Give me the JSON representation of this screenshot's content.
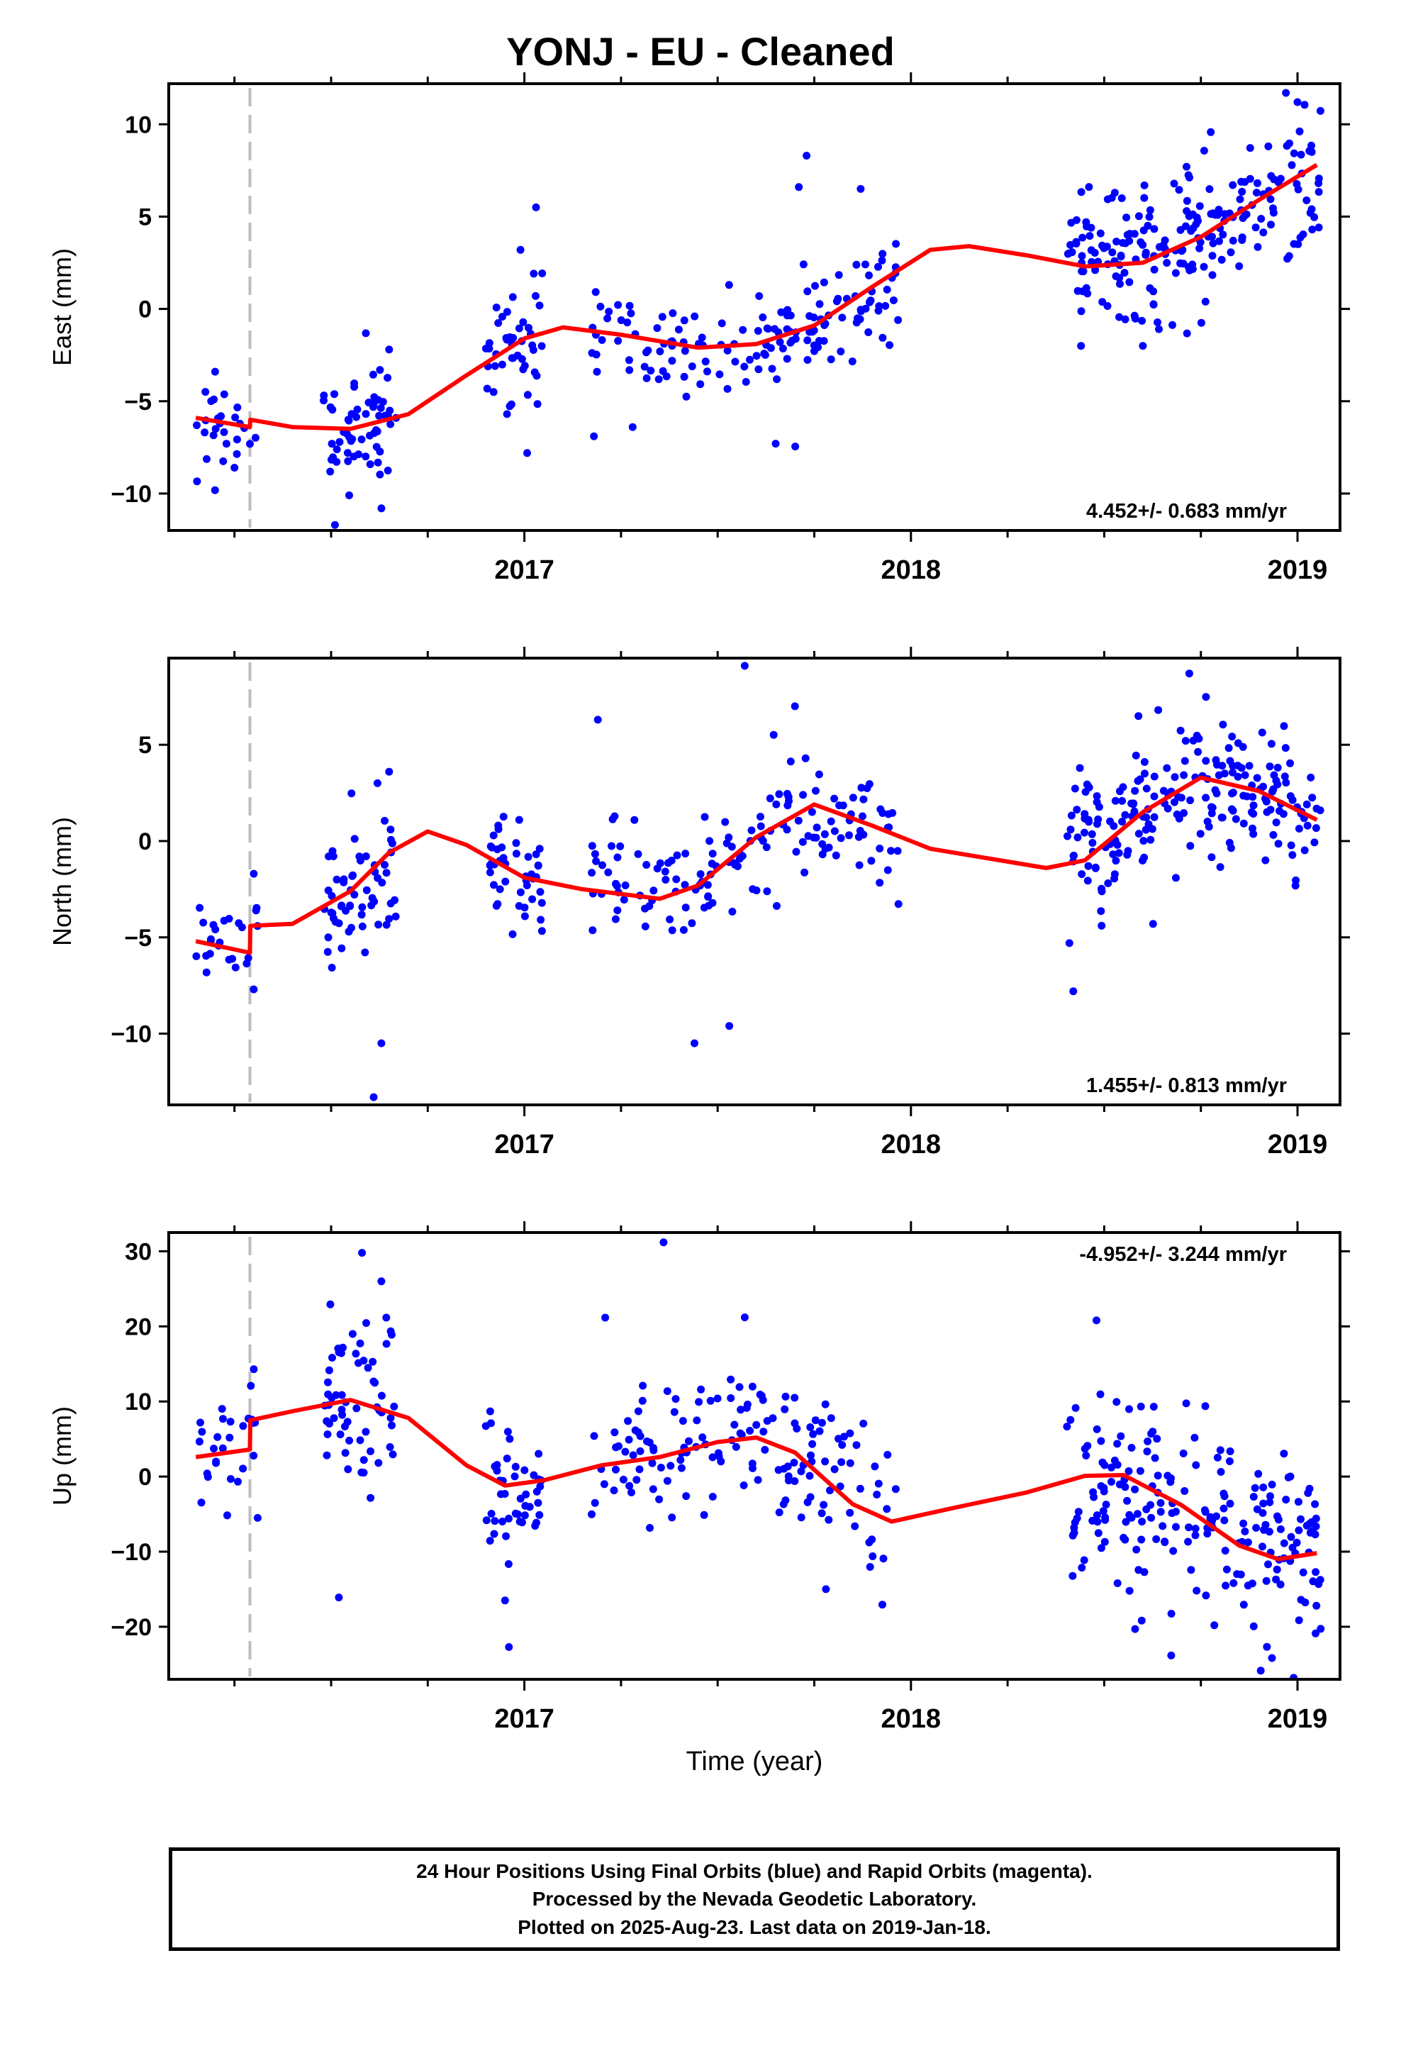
{
  "title": "YONJ  - EU - Cleaned",
  "xlabel": "Time (year)",
  "caption": [
    "24 Hour Positions Using Final Orbits (blue) and Rapid Orbits (magenta).",
    "Processed by the Nevada Geodetic Laboratory.",
    "Plotted on 2025-Aug-23. Last data on 2019-Jan-18."
  ],
  "colors": {
    "points": "#0000ff",
    "fit": "#ff0000",
    "step_line": "#bdbdbd",
    "axes": "#000000"
  },
  "chart_data": [
    {
      "type": "scatter",
      "ylabel": "East (mm)",
      "xlim": [
        2016.08,
        2019.11
      ],
      "ylim": [
        -12,
        12.2
      ],
      "yticks": [
        -10,
        -5,
        0,
        5,
        10
      ],
      "xticks": [
        2017,
        2018,
        2019
      ],
      "rate_label": "4.452+/- 0.683 mm/yr",
      "step_epoch": 2016.29,
      "fit": [
        [
          2016.15,
          -5.9
        ],
        [
          2016.29,
          -6.4
        ],
        [
          2016.291,
          -6.0
        ],
        [
          2016.4,
          -6.4
        ],
        [
          2016.55,
          -6.5
        ],
        [
          2016.7,
          -5.7
        ],
        [
          2016.85,
          -3.6
        ],
        [
          2017.0,
          -1.6
        ],
        [
          2017.1,
          -1.0
        ],
        [
          2017.25,
          -1.4
        ],
        [
          2017.45,
          -2.1
        ],
        [
          2017.6,
          -1.9
        ],
        [
          2017.75,
          -0.9
        ],
        [
          2017.9,
          1.2
        ],
        [
          2018.05,
          3.2
        ],
        [
          2018.15,
          3.4
        ],
        [
          2018.3,
          2.9
        ],
        [
          2018.45,
          2.3
        ],
        [
          2018.6,
          2.5
        ],
        [
          2018.75,
          3.9
        ],
        [
          2018.9,
          5.9
        ],
        [
          2019.05,
          7.8
        ]
      ],
      "segments": [
        {
          "start": 2016.15,
          "end": 2016.31,
          "center": -6.3,
          "spread": 1.2,
          "n": 26,
          "outliers": [
            [
              2016.2,
              -3.4
            ],
            [
              2016.25,
              -8.6
            ]
          ]
        },
        {
          "start": 2016.48,
          "end": 2016.67,
          "center": -6.6,
          "spread": 1.7,
          "n": 60,
          "outliers": [
            [
              2016.51,
              -11.7
            ],
            [
              2016.63,
              -10.8
            ],
            [
              2016.65,
              -2.2
            ]
          ]
        },
        {
          "start": 2016.9,
          "end": 2017.05,
          "center": -2.2,
          "spread": 1.5,
          "n": 45,
          "outliers": [
            [
              2017.03,
              5.5
            ],
            [
              2016.99,
              3.2
            ]
          ]
        },
        {
          "start": 2017.17,
          "end": 2017.97,
          "center": -1.0,
          "spread": 1.5,
          "n": 150,
          "outliers": [
            [
              2017.73,
              8.3
            ],
            [
              2017.71,
              6.6
            ],
            [
              2017.87,
              6.5
            ],
            [
              2017.18,
              -6.9
            ],
            [
              2017.65,
              -7.3
            ],
            [
              2017.28,
              -6.4
            ]
          ]
        },
        {
          "start": 2018.4,
          "end": 2019.06,
          "center": 4.3,
          "spread": 1.9,
          "n": 210,
          "outliers": [
            [
              2018.97,
              11.7
            ],
            [
              2019.0,
              11.2
            ],
            [
              2018.44,
              -2.0
            ],
            [
              2018.6,
              -2.0
            ]
          ]
        }
      ]
    },
    {
      "type": "scatter",
      "ylabel": "North (mm)",
      "xlim": [
        2016.08,
        2019.11
      ],
      "ylim": [
        -13.7,
        9.5
      ],
      "yticks": [
        -10,
        -5,
        0,
        5
      ],
      "xticks": [
        2017,
        2018,
        2019
      ],
      "rate_label": "1.455+/- 0.813 mm/yr",
      "step_epoch": 2016.29,
      "fit": [
        [
          2016.15,
          -5.2
        ],
        [
          2016.29,
          -5.8
        ],
        [
          2016.291,
          -4.4
        ],
        [
          2016.4,
          -4.3
        ],
        [
          2016.55,
          -2.6
        ],
        [
          2016.65,
          -0.6
        ],
        [
          2016.75,
          0.5
        ],
        [
          2016.85,
          -0.2
        ],
        [
          2017.0,
          -1.9
        ],
        [
          2017.15,
          -2.5
        ],
        [
          2017.35,
          -3.0
        ],
        [
          2017.45,
          -2.3
        ],
        [
          2017.6,
          0.2
        ],
        [
          2017.75,
          1.9
        ],
        [
          2017.9,
          0.8
        ],
        [
          2018.05,
          -0.4
        ],
        [
          2018.2,
          -0.9
        ],
        [
          2018.35,
          -1.4
        ],
        [
          2018.45,
          -1.0
        ],
        [
          2018.6,
          1.5
        ],
        [
          2018.75,
          3.3
        ],
        [
          2018.9,
          2.6
        ],
        [
          2019.05,
          1.1
        ]
      ],
      "segments": [
        {
          "start": 2016.15,
          "end": 2016.31,
          "center": -5.3,
          "spread": 1.1,
          "n": 24,
          "outliers": [
            [
              2016.3,
              -7.7
            ],
            [
              2016.3,
              -1.7
            ]
          ]
        },
        {
          "start": 2016.48,
          "end": 2016.67,
          "center": -2.4,
          "spread": 1.8,
          "n": 60,
          "outliers": [
            [
              2016.61,
              -13.3
            ],
            [
              2016.63,
              -10.5
            ],
            [
              2016.65,
              3.6
            ]
          ]
        },
        {
          "start": 2016.9,
          "end": 2017.05,
          "center": -1.6,
          "spread": 1.3,
          "n": 45,
          "outliers": []
        },
        {
          "start": 2017.17,
          "end": 2017.97,
          "center": -0.2,
          "spread": 1.6,
          "n": 150,
          "outliers": [
            [
              2017.19,
              6.3
            ],
            [
              2017.57,
              9.1
            ],
            [
              2017.44,
              -10.5
            ],
            [
              2017.53,
              -9.6
            ],
            [
              2017.7,
              7.0
            ]
          ]
        },
        {
          "start": 2018.4,
          "end": 2019.06,
          "center": 2.0,
          "spread": 1.6,
          "n": 210,
          "outliers": [
            [
              2018.72,
              8.7
            ],
            [
              2018.42,
              -7.8
            ],
            [
              2018.41,
              -5.3
            ]
          ]
        }
      ]
    },
    {
      "type": "scatter",
      "ylabel": "Up (mm)",
      "xlim": [
        2016.08,
        2019.11
      ],
      "ylim": [
        -27,
        32.5
      ],
      "yticks": [
        -20,
        -10,
        0,
        10,
        20,
        30
      ],
      "xticks": [
        2017,
        2018,
        2019
      ],
      "rate_label": "-4.952+/- 3.244 mm/yr",
      "step_epoch": 2016.29,
      "fit": [
        [
          2016.15,
          2.6
        ],
        [
          2016.29,
          3.6
        ],
        [
          2016.291,
          7.5
        ],
        [
          2016.4,
          8.7
        ],
        [
          2016.55,
          10.2
        ],
        [
          2016.7,
          7.8
        ],
        [
          2016.85,
          1.5
        ],
        [
          2016.95,
          -1.2
        ],
        [
          2017.05,
          -0.5
        ],
        [
          2017.2,
          1.5
        ],
        [
          2017.35,
          2.6
        ],
        [
          2017.5,
          4.6
        ],
        [
          2017.6,
          5.2
        ],
        [
          2017.7,
          3.2
        ],
        [
          2017.85,
          -3.7
        ],
        [
          2017.95,
          -6.0
        ],
        [
          2018.1,
          -4.3
        ],
        [
          2018.3,
          -2.1
        ],
        [
          2018.45,
          0.1
        ],
        [
          2018.55,
          0.2
        ],
        [
          2018.7,
          -3.8
        ],
        [
          2018.85,
          -9.2
        ],
        [
          2018.95,
          -11.0
        ],
        [
          2019.05,
          -10.2
        ]
      ],
      "segments": [
        {
          "start": 2016.15,
          "end": 2016.31,
          "center": 3.5,
          "spread": 4.0,
          "n": 26,
          "outliers": [
            [
              2016.31,
              -5.5
            ],
            [
              2016.3,
              14.3
            ]
          ]
        },
        {
          "start": 2016.48,
          "end": 2016.67,
          "center": 9.0,
          "spread": 5.5,
          "n": 60,
          "outliers": [
            [
              2016.52,
              -16.1
            ],
            [
              2016.58,
              29.8
            ],
            [
              2016.63,
              26.0
            ]
          ]
        },
        {
          "start": 2016.9,
          "end": 2017.05,
          "center": -4.0,
          "spread": 4.5,
          "n": 45,
          "outliers": [
            [
              2016.96,
              -22.7
            ],
            [
              2016.95,
              -16.5
            ]
          ]
        },
        {
          "start": 2017.17,
          "end": 2017.97,
          "center": 4.0,
          "spread": 5.5,
          "n": 150,
          "outliers": [
            [
              2017.36,
              31.2
            ],
            [
              2017.57,
              21.2
            ],
            [
              2017.78,
              -15.0
            ]
          ]
        },
        {
          "start": 2018.4,
          "end": 2019.06,
          "center": -4.5,
          "spread": 6.5,
          "n": 210,
          "outliers": [
            [
              2018.48,
              20.8
            ],
            [
              2018.99,
              -26.8
            ],
            [
              2018.58,
              -20.3
            ]
          ]
        }
      ]
    }
  ]
}
